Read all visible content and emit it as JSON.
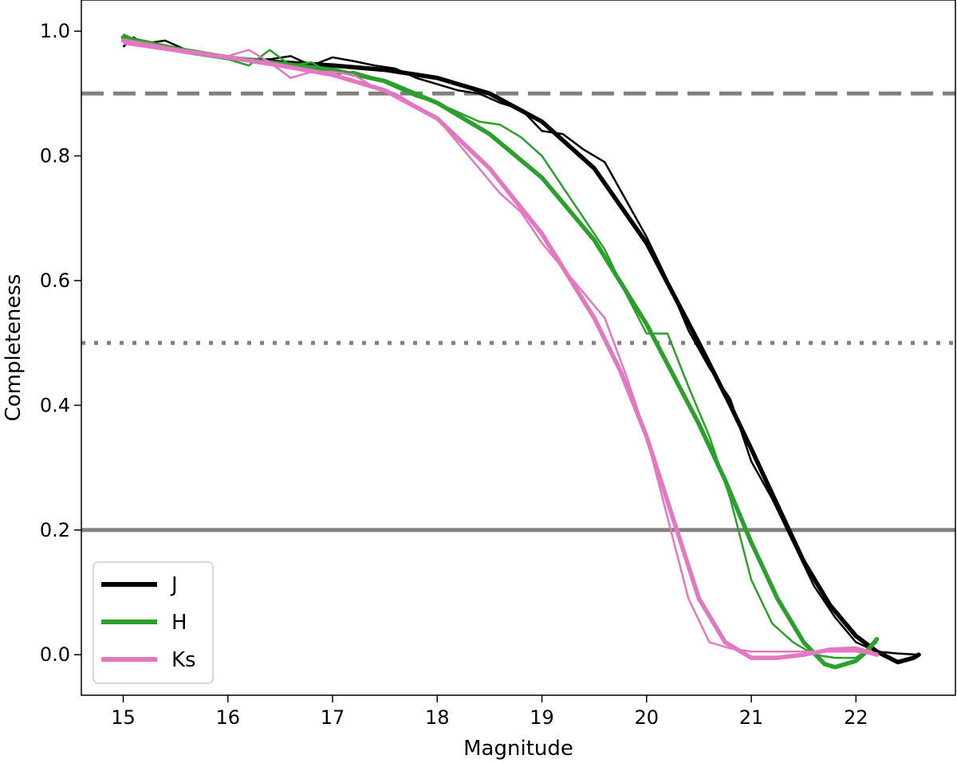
{
  "chart_data": {
    "type": "line",
    "title": "",
    "xlabel": "Magnitude",
    "ylabel": "Completeness",
    "xlim": [
      14.6,
      22.95
    ],
    "ylim": [
      -0.065,
      1.05
    ],
    "xticks": [
      15,
      16,
      17,
      18,
      19,
      20,
      21,
      22
    ],
    "xtick_labels": [
      "15",
      "16",
      "17",
      "18",
      "19",
      "20",
      "21",
      "22"
    ],
    "yticks": [
      0.0,
      0.2,
      0.4,
      0.6,
      0.8,
      1.0
    ],
    "ytick_labels": [
      "0.0",
      "0.2",
      "0.4",
      "0.6",
      "0.8",
      "1.0"
    ],
    "grid": false,
    "legend": {
      "placement": "bottom-left",
      "entries": [
        {
          "label": "J",
          "color": "#000000"
        },
        {
          "label": "H",
          "color": "#2ca02c"
        },
        {
          "label": "Ks",
          "color": "#e377c2"
        }
      ]
    },
    "reference_lines": [
      {
        "y": 0.9,
        "style": "dashed",
        "color": "#808080"
      },
      {
        "y": 0.5,
        "style": "dotted",
        "color": "#808080"
      },
      {
        "y": 0.2,
        "style": "solid",
        "color": "#808080"
      }
    ],
    "series": [
      {
        "name": "J",
        "color": "#000000",
        "measured": [
          [
            15.0,
            0.975
          ],
          [
            15.1,
            0.99
          ],
          [
            15.2,
            0.98
          ],
          [
            15.4,
            0.985
          ],
          [
            15.6,
            0.97
          ],
          [
            15.8,
            0.962
          ],
          [
            16.0,
            0.958
          ],
          [
            16.2,
            0.955
          ],
          [
            16.4,
            0.955
          ],
          [
            16.6,
            0.96
          ],
          [
            16.8,
            0.945
          ],
          [
            17.0,
            0.958
          ],
          [
            17.2,
            0.952
          ],
          [
            17.4,
            0.945
          ],
          [
            17.6,
            0.94
          ],
          [
            17.8,
            0.925
          ],
          [
            18.0,
            0.915
          ],
          [
            18.2,
            0.905
          ],
          [
            18.4,
            0.9
          ],
          [
            18.6,
            0.885
          ],
          [
            18.8,
            0.875
          ],
          [
            19.0,
            0.84
          ],
          [
            19.2,
            0.835
          ],
          [
            19.4,
            0.81
          ],
          [
            19.6,
            0.79
          ],
          [
            19.8,
            0.73
          ],
          [
            20.0,
            0.67
          ],
          [
            20.2,
            0.6
          ],
          [
            20.4,
            0.52
          ],
          [
            20.6,
            0.46
          ],
          [
            20.8,
            0.41
          ],
          [
            21.0,
            0.31
          ],
          [
            21.2,
            0.25
          ],
          [
            21.4,
            0.18
          ],
          [
            21.6,
            0.11
          ],
          [
            21.8,
            0.06
          ],
          [
            22.0,
            0.02
          ],
          [
            22.2,
            0.005
          ],
          [
            22.4,
            0.002
          ],
          [
            22.6,
            0.0
          ]
        ],
        "fit": [
          [
            15.0,
            0.99
          ],
          [
            15.5,
            0.97
          ],
          [
            16.0,
            0.957
          ],
          [
            16.5,
            0.95
          ],
          [
            17.0,
            0.945
          ],
          [
            17.5,
            0.938
          ],
          [
            18.0,
            0.925
          ],
          [
            18.5,
            0.9
          ],
          [
            19.0,
            0.855
          ],
          [
            19.5,
            0.78
          ],
          [
            20.0,
            0.66
          ],
          [
            20.5,
            0.5
          ],
          [
            20.8,
            0.4
          ],
          [
            21.0,
            0.33
          ],
          [
            21.25,
            0.24
          ],
          [
            21.5,
            0.15
          ],
          [
            21.75,
            0.08
          ],
          [
            22.0,
            0.03
          ],
          [
            22.2,
            0.005
          ],
          [
            22.4,
            -0.012
          ],
          [
            22.55,
            -0.005
          ],
          [
            22.6,
            0.0
          ]
        ]
      },
      {
        "name": "H",
        "color": "#2ca02c",
        "measured": [
          [
            15.0,
            0.995
          ],
          [
            15.2,
            0.98
          ],
          [
            15.4,
            0.975
          ],
          [
            15.6,
            0.965
          ],
          [
            15.8,
            0.96
          ],
          [
            16.0,
            0.955
          ],
          [
            16.2,
            0.945
          ],
          [
            16.4,
            0.97
          ],
          [
            16.6,
            0.945
          ],
          [
            16.8,
            0.95
          ],
          [
            17.0,
            0.93
          ],
          [
            17.2,
            0.935
          ],
          [
            17.4,
            0.925
          ],
          [
            17.6,
            0.91
          ],
          [
            17.8,
            0.895
          ],
          [
            18.0,
            0.885
          ],
          [
            18.2,
            0.87
          ],
          [
            18.4,
            0.855
          ],
          [
            18.6,
            0.85
          ],
          [
            18.8,
            0.83
          ],
          [
            19.0,
            0.8
          ],
          [
            19.2,
            0.75
          ],
          [
            19.4,
            0.7
          ],
          [
            19.6,
            0.65
          ],
          [
            19.8,
            0.58
          ],
          [
            20.0,
            0.515
          ],
          [
            20.2,
            0.515
          ],
          [
            20.4,
            0.43
          ],
          [
            20.6,
            0.35
          ],
          [
            20.8,
            0.25
          ],
          [
            21.0,
            0.12
          ],
          [
            21.2,
            0.05
          ],
          [
            21.4,
            0.02
          ],
          [
            21.6,
            0.0
          ],
          [
            21.8,
            -0.005
          ],
          [
            22.0,
            -0.005
          ],
          [
            22.2,
            0.02
          ]
        ],
        "fit": [
          [
            15.0,
            0.99
          ],
          [
            15.5,
            0.972
          ],
          [
            16.0,
            0.958
          ],
          [
            16.5,
            0.948
          ],
          [
            17.0,
            0.938
          ],
          [
            17.5,
            0.92
          ],
          [
            18.0,
            0.885
          ],
          [
            18.5,
            0.835
          ],
          [
            19.0,
            0.765
          ],
          [
            19.5,
            0.665
          ],
          [
            20.0,
            0.53
          ],
          [
            20.5,
            0.37
          ],
          [
            20.75,
            0.28
          ],
          [
            21.0,
            0.18
          ],
          [
            21.25,
            0.09
          ],
          [
            21.5,
            0.02
          ],
          [
            21.7,
            -0.015
          ],
          [
            21.8,
            -0.02
          ],
          [
            22.0,
            -0.01
          ],
          [
            22.1,
            0.005
          ],
          [
            22.2,
            0.025
          ]
        ]
      },
      {
        "name": "Ks",
        "color": "#e377c2",
        "measured": [
          [
            15.0,
            0.98
          ],
          [
            15.2,
            0.975
          ],
          [
            15.4,
            0.97
          ],
          [
            15.6,
            0.965
          ],
          [
            15.8,
            0.962
          ],
          [
            16.0,
            0.96
          ],
          [
            16.2,
            0.97
          ],
          [
            16.4,
            0.95
          ],
          [
            16.6,
            0.925
          ],
          [
            16.8,
            0.935
          ],
          [
            17.0,
            0.935
          ],
          [
            17.2,
            0.93
          ],
          [
            17.4,
            0.91
          ],
          [
            17.6,
            0.9
          ],
          [
            17.8,
            0.88
          ],
          [
            18.0,
            0.86
          ],
          [
            18.2,
            0.82
          ],
          [
            18.4,
            0.78
          ],
          [
            18.6,
            0.74
          ],
          [
            18.8,
            0.71
          ],
          [
            19.0,
            0.66
          ],
          [
            19.2,
            0.62
          ],
          [
            19.4,
            0.58
          ],
          [
            19.6,
            0.54
          ],
          [
            19.8,
            0.45
          ],
          [
            20.0,
            0.35
          ],
          [
            20.2,
            0.22
          ],
          [
            20.4,
            0.09
          ],
          [
            20.6,
            0.02
          ],
          [
            20.8,
            0.01
          ],
          [
            21.0,
            0.005
          ],
          [
            21.2,
            0.005
          ],
          [
            21.4,
            0.005
          ],
          [
            21.6,
            0.005
          ],
          [
            21.8,
            0.005
          ],
          [
            22.0,
            0.005
          ],
          [
            22.2,
            0.0
          ]
        ],
        "fit": [
          [
            15.0,
            0.985
          ],
          [
            15.5,
            0.97
          ],
          [
            16.0,
            0.958
          ],
          [
            16.5,
            0.945
          ],
          [
            17.0,
            0.93
          ],
          [
            17.5,
            0.905
          ],
          [
            18.0,
            0.86
          ],
          [
            18.5,
            0.78
          ],
          [
            19.0,
            0.675
          ],
          [
            19.5,
            0.54
          ],
          [
            19.75,
            0.455
          ],
          [
            20.0,
            0.35
          ],
          [
            20.25,
            0.22
          ],
          [
            20.5,
            0.09
          ],
          [
            20.75,
            0.02
          ],
          [
            21.0,
            -0.005
          ],
          [
            21.25,
            -0.005
          ],
          [
            21.5,
            0.0
          ],
          [
            21.75,
            0.008
          ],
          [
            22.0,
            0.01
          ],
          [
            22.2,
            0.0
          ]
        ]
      }
    ]
  }
}
